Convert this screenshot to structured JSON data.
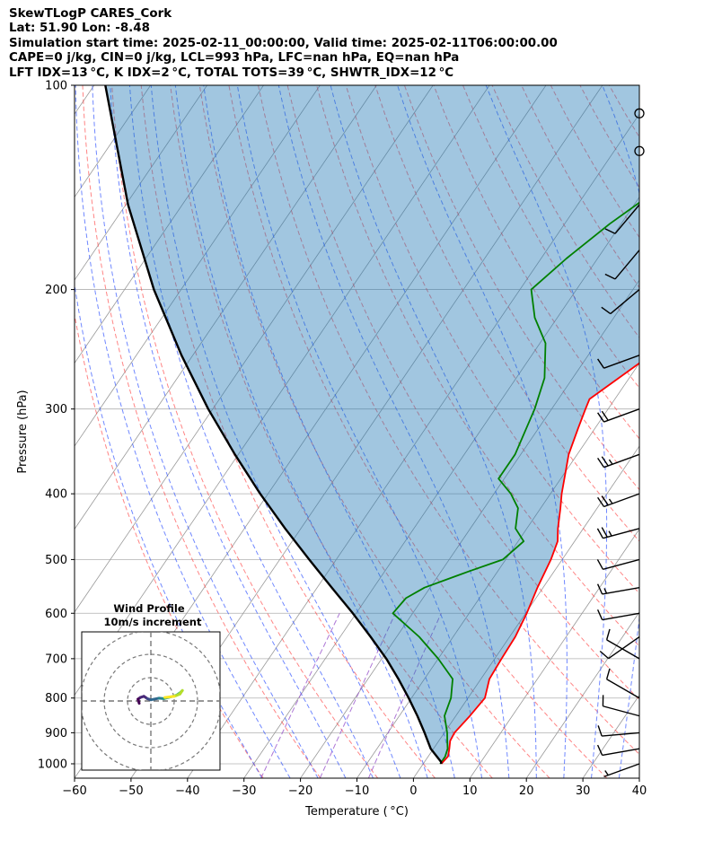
{
  "header": {
    "line1": "SkewTLogP CARES_Cork",
    "line2": "Lat: 51.90   Lon: -8.48",
    "line3": "Simulation start time: 2025-02-11_00:00:00, Valid time: 2025-02-11T06:00:00.00",
    "line4": "CAPE=0 j/kg, CIN=0 j/kg, LCL=993 hPa, LFC=nan hPa, EQ=nan hPa",
    "line5": "LFT IDX=13 °C, K IDX=2 °C, TOTAL TOTS=39 °C, SHWTR_IDX=12 °C"
  },
  "chart_data": {
    "type": "line",
    "subtype": "skew-T log-P",
    "xlabel": "Temperature ( °C)",
    "ylabel": "Pressure (hPa)",
    "xlim": [
      -60,
      40
    ],
    "ylim_pressure": [
      1050,
      100
    ],
    "x_ticks": [
      "−60",
      "−50",
      "−40",
      "−30",
      "−20",
      "−10",
      "0",
      "10",
      "20",
      "30",
      "40"
    ],
    "x_tick_values": [
      -60,
      -50,
      -40,
      -30,
      -20,
      -10,
      0,
      10,
      20,
      30,
      40
    ],
    "y_ticks": [
      1000,
      900,
      800,
      700,
      600,
      500,
      400,
      300,
      200,
      100
    ],
    "y_tick_labels": [
      "1000",
      "900",
      "800",
      "700",
      "600",
      "500",
      "400",
      "300",
      "200",
      "100"
    ],
    "log_y": true,
    "grid": true,
    "colors": {
      "temperature": "#ff0000",
      "dewpoint": "#008000",
      "parcel": "#000000",
      "cin_fill": "#1f77b4",
      "dry_adiabat": "#ff4444",
      "moist_adiabat": "#3355ff",
      "mixing_ratio": "#9955cc",
      "isotherm": "#999999"
    },
    "series": [
      {
        "key": "temperature",
        "pressure": [
          1000,
          975,
          950,
          925,
          900,
          850,
          800,
          750,
          700,
          650,
          600,
          550,
          500,
          470,
          450,
          420,
          400,
          350,
          320,
          300,
          290,
          250,
          230,
          200,
          180,
          160,
          140,
          130,
          120,
          110,
          100
        ],
        "values": [
          3.2,
          3.5,
          2.8,
          2.0,
          1.8,
          2.5,
          3.0,
          1.5,
          1.2,
          1.0,
          0.2,
          -1.0,
          -2.0,
          -3.0,
          -4.5,
          -6.5,
          -8.0,
          -11.5,
          -13.0,
          -14.0,
          -14.5,
          -9.0,
          -3.0,
          2.0,
          5.0,
          8.0,
          10.5,
          11.5,
          12.5,
          13.5,
          14.5
        ]
      },
      {
        "key": "dewpoint",
        "pressure": [
          1000,
          975,
          950,
          925,
          900,
          850,
          800,
          750,
          700,
          650,
          600,
          570,
          550,
          520,
          500,
          470,
          450,
          420,
          400,
          380,
          350,
          300,
          270,
          240,
          220,
          200,
          180,
          160,
          140,
          120,
          100
        ],
        "values": [
          3.0,
          3.0,
          2.5,
          1.5,
          0.5,
          -2.0,
          -3.0,
          -5.0,
          -10.0,
          -16.0,
          -23.5,
          -23.0,
          -21.0,
          -15.0,
          -10.5,
          -9.0,
          -12.0,
          -14.0,
          -17.0,
          -21.0,
          -21.0,
          -23.0,
          -25.0,
          -29.0,
          -34.0,
          -38.0,
          -35.5,
          -32.0,
          -27.0,
          -21.0,
          -14.0
        ]
      },
      {
        "key": "parcel",
        "pressure": [
          1000,
          993,
          950,
          900,
          850,
          800,
          750,
          700,
          650,
          600,
          550,
          500,
          450,
          400,
          350,
          300,
          250,
          200,
          150,
          100
        ],
        "values": [
          3.2,
          2.9,
          -0.5,
          -3.5,
          -6.8,
          -10.5,
          -14.6,
          -19.2,
          -24.6,
          -30.6,
          -37.4,
          -44.8,
          -52.8,
          -61.4,
          -70.6,
          -80.8,
          -92.0,
          -104.8,
          -119.6,
          -138.0
        ]
      }
    ],
    "wind_barbs": [
      {
        "pressure": 1000,
        "speed_kt": 7,
        "direction_deg": 250
      },
      {
        "pressure": 950,
        "speed_kt": 12,
        "direction_deg": 260
      },
      {
        "pressure": 900,
        "speed_kt": 10,
        "direction_deg": 265
      },
      {
        "pressure": 850,
        "speed_kt": 12,
        "direction_deg": 285
      },
      {
        "pressure": 800,
        "speed_kt": 10,
        "direction_deg": 300
      },
      {
        "pressure": 700,
        "speed_kt": 12,
        "direction_deg": 300
      },
      {
        "pressure": 650,
        "speed_kt": 10,
        "direction_deg": 235
      },
      {
        "pressure": 600,
        "speed_kt": 10,
        "direction_deg": 260
      },
      {
        "pressure": 550,
        "speed_kt": 15,
        "direction_deg": 260
      },
      {
        "pressure": 500,
        "speed_kt": 10,
        "direction_deg": 255
      },
      {
        "pressure": 450,
        "speed_kt": 25,
        "direction_deg": 255
      },
      {
        "pressure": 400,
        "speed_kt": 25,
        "direction_deg": 250
      },
      {
        "pressure": 350,
        "speed_kt": 25,
        "direction_deg": 250
      },
      {
        "pressure": 300,
        "speed_kt": 20,
        "direction_deg": 250
      },
      {
        "pressure": 250,
        "speed_kt": 10,
        "direction_deg": 250
      },
      {
        "pressure": 200,
        "speed_kt": 10,
        "direction_deg": 230
      },
      {
        "pressure": 175,
        "speed_kt": 10,
        "direction_deg": 220
      },
      {
        "pressure": 150,
        "speed_kt": 10,
        "direction_deg": 220
      },
      {
        "pressure": 125,
        "speed_kt": 0,
        "direction_deg": 0
      },
      {
        "pressure": 110,
        "speed_kt": 0,
        "direction_deg": 0
      }
    ],
    "inset": {
      "title": "Wind Profile",
      "subtitle": "10m/s increment",
      "rings_ms": [
        10,
        20,
        30
      ],
      "hodograph_uv_ms": [
        [
          -5.0,
          -1.0
        ],
        [
          -5.5,
          0.8
        ],
        [
          -4.5,
          1.5
        ],
        [
          -3.0,
          2.0
        ],
        [
          -1.5,
          1.0
        ],
        [
          0.0,
          0.5
        ],
        [
          1.5,
          0.8
        ],
        [
          3.5,
          1.2
        ],
        [
          5.5,
          1.0
        ],
        [
          7.5,
          1.5
        ],
        [
          9.5,
          2.0
        ],
        [
          11.0,
          2.5
        ],
        [
          12.5,
          3.5
        ],
        [
          13.5,
          4.5
        ],
        [
          12.5,
          3.0
        ],
        [
          10.0,
          2.0
        ],
        [
          6.0,
          1.5
        ]
      ]
    }
  }
}
